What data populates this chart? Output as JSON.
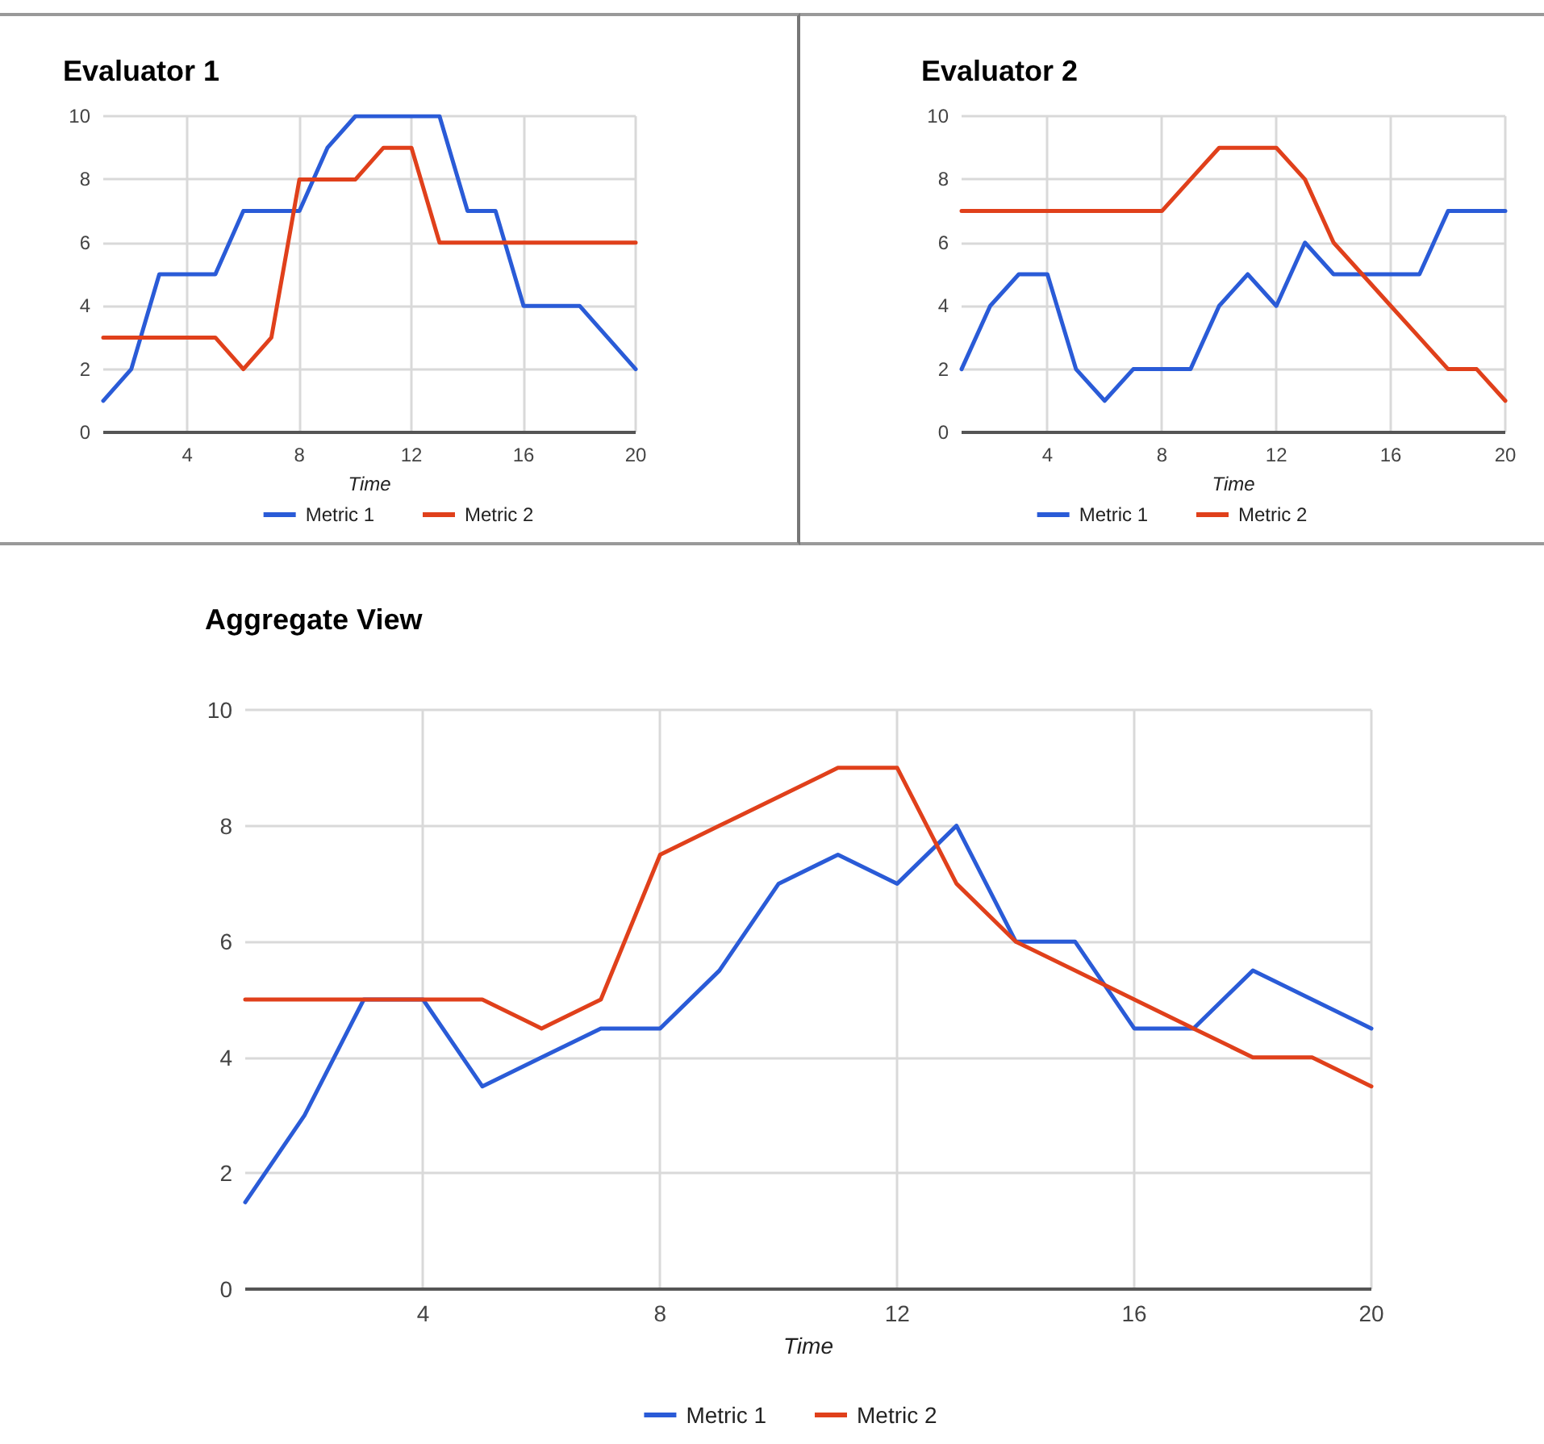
{
  "chart_data": [
    {
      "type": "line",
      "title": "Evaluator 1",
      "xlabel": "Time",
      "x": [
        1,
        2,
        3,
        4,
        5,
        6,
        7,
        8,
        9,
        10,
        11,
        12,
        13,
        14,
        15,
        16,
        17,
        18,
        19,
        20
      ],
      "xlim": [
        1,
        20
      ],
      "xticks": [
        4,
        8,
        12,
        16,
        20
      ],
      "ylim": [
        0,
        10
      ],
      "yticks": [
        0,
        2,
        4,
        6,
        8,
        10
      ],
      "grid": true,
      "legend": "bottom",
      "marker": "none",
      "series": [
        {
          "name": "Metric 1",
          "color": "#2a5bd7",
          "values": [
            1,
            2,
            5,
            5,
            5,
            7,
            7,
            7,
            9,
            10,
            10,
            10,
            10,
            7,
            7,
            4,
            4,
            4,
            3,
            2
          ]
        },
        {
          "name": "Metric 2",
          "color": "#e0401b",
          "values": [
            3,
            3,
            3,
            3,
            3,
            2,
            3,
            8,
            8,
            8,
            9,
            9,
            6,
            6,
            6,
            6,
            6,
            6,
            6,
            6
          ]
        }
      ]
    },
    {
      "type": "line",
      "title": "Evaluator 2",
      "xlabel": "Time",
      "x": [
        1,
        2,
        3,
        4,
        5,
        6,
        7,
        8,
        9,
        10,
        11,
        12,
        13,
        14,
        15,
        16,
        17,
        18,
        19,
        20
      ],
      "xlim": [
        1,
        20
      ],
      "xticks": [
        4,
        8,
        12,
        16,
        20
      ],
      "ylim": [
        0,
        10
      ],
      "yticks": [
        0,
        2,
        4,
        6,
        8,
        10
      ],
      "grid": true,
      "legend": "bottom",
      "marker": "none",
      "series": [
        {
          "name": "Metric 1",
          "color": "#2a5bd7",
          "values": [
            2,
            4,
            5,
            5,
            2,
            1,
            2,
            2,
            2,
            4,
            5,
            4,
            6,
            5,
            5,
            5,
            5,
            7,
            7,
            7
          ]
        },
        {
          "name": "Metric 2",
          "color": "#e0401b",
          "values": [
            7,
            7,
            7,
            7,
            7,
            7,
            7,
            7,
            8,
            9,
            9,
            9,
            8,
            6,
            5,
            4,
            3,
            2,
            2,
            1
          ]
        }
      ]
    },
    {
      "type": "line",
      "title": "Aggregate View",
      "xlabel": "Time",
      "x": [
        1,
        2,
        3,
        4,
        5,
        6,
        7,
        8,
        9,
        10,
        11,
        12,
        13,
        14,
        15,
        16,
        17,
        18,
        19,
        20
      ],
      "xlim": [
        1,
        20
      ],
      "xticks": [
        4,
        8,
        12,
        16,
        20
      ],
      "ylim": [
        0,
        10
      ],
      "yticks": [
        0,
        2,
        4,
        6,
        8,
        10
      ],
      "grid": true,
      "legend": "bottom",
      "marker": "none",
      "series": [
        {
          "name": "Metric 1",
          "color": "#2a5bd7",
          "values": [
            1.5,
            3,
            5,
            5,
            3.5,
            4,
            4.5,
            4.5,
            5.5,
            7,
            7.5,
            7,
            8,
            6,
            6,
            4.5,
            4.5,
            5.5,
            5,
            4.5
          ]
        },
        {
          "name": "Metric 2",
          "color": "#e0401b",
          "values": [
            5,
            5,
            5,
            5,
            5,
            4.5,
            5,
            7.5,
            8,
            8.5,
            9,
            9,
            7,
            6,
            5.5,
            5,
            4.5,
            4,
            4,
            3.5
          ]
        }
      ]
    }
  ]
}
